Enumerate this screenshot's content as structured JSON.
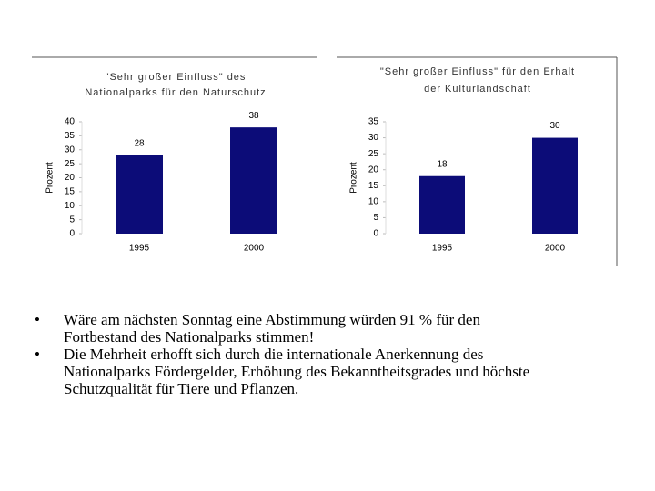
{
  "chart_data": [
    {
      "type": "bar",
      "title": [
        "\"Sehr großer Einfluss\" des",
        "Nationalparks für den Naturschutz"
      ],
      "y_label": "Prozent",
      "categories": [
        "1995",
        "2000"
      ],
      "values": [
        28,
        38
      ],
      "color": "#0c0c78",
      "ylim": [
        0,
        40
      ],
      "yticks": [
        0,
        5,
        10,
        15,
        20,
        25,
        30,
        35,
        40
      ]
    },
    {
      "type": "bar",
      "title": [
        "\"Sehr großer Einfluss\" für den Erhalt",
        "der Kulturlandschaft"
      ],
      "y_label": "Prozent",
      "categories": [
        "1995",
        "2000"
      ],
      "values": [
        18,
        30
      ],
      "color": "#0c0c78",
      "ylim": [
        0,
        35
      ],
      "yticks": [
        0,
        5,
        10,
        15,
        20,
        25,
        30,
        35
      ]
    }
  ],
  "bullets": [
    [
      "Wäre am nächsten Sonntag eine Abstimmung würden 91 % für den",
      "Fortbestand des Nationalparks stimmen!"
    ],
    [
      "Die Mehrheit erhofft sich durch die internationale Anerkennung des",
      "Nationalparks Fördergelder, Erhöhung des Bekanntheitsgrades und höchste",
      "Schutzqualität für Tiere und Pflanzen."
    ]
  ]
}
